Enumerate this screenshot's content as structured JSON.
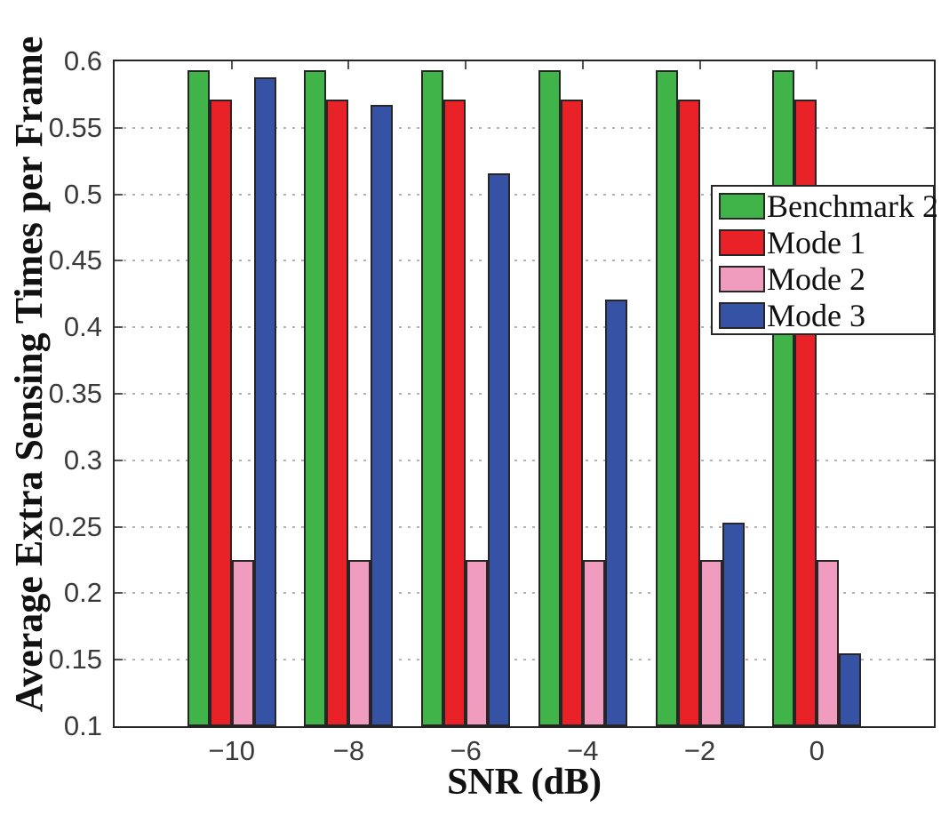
{
  "chart_data": {
    "type": "bar",
    "title": "",
    "xlabel": "SNR (dB)",
    "ylabel": "Average Extra Sensing Times per Frame",
    "categories": [
      -10,
      -8,
      -6,
      -4,
      -2,
      0
    ],
    "x_tick_labels": [
      "−10",
      "−8",
      "−6",
      "−4",
      "−2",
      "0"
    ],
    "series": [
      {
        "name": "Benchmark 2",
        "color": "#41B449",
        "values": [
          0.593,
          0.593,
          0.593,
          0.593,
          0.593,
          0.593
        ]
      },
      {
        "name": "Mode 1",
        "color": "#E92227",
        "values": [
          0.571,
          0.571,
          0.571,
          0.571,
          0.571,
          0.571
        ]
      },
      {
        "name": "Mode 2",
        "color": "#F09CBE",
        "values": [
          0.225,
          0.225,
          0.225,
          0.225,
          0.225,
          0.225
        ]
      },
      {
        "name": "Mode 3",
        "color": "#3552A5",
        "values": [
          0.588,
          0.567,
          0.516,
          0.421,
          0.253,
          0.155
        ]
      }
    ],
    "xlim": [
      -12,
      2
    ],
    "ylim": [
      0.1,
      0.6
    ],
    "y_ticks": [
      0.1,
      0.15,
      0.2,
      0.25,
      0.3,
      0.35,
      0.4,
      0.45,
      0.5,
      0.55,
      0.6
    ],
    "y_tick_labels": [
      "0.1",
      "0.15",
      "0.2",
      "0.25",
      "0.3",
      "0.35",
      "0.4",
      "0.45",
      "0.5",
      "0.55",
      "0.6"
    ],
    "grid": "horizontal-dotted",
    "legend": {
      "position": "top-right",
      "entries": [
        "Benchmark 2",
        "Mode 1",
        "Mode 2",
        "Mode 3"
      ]
    },
    "colors": {
      "bar_edge": "#262626",
      "axis": "#262626",
      "grid": "#b3b3b3",
      "tick_text": "#3a3a3a",
      "background": "#ffffff"
    }
  }
}
